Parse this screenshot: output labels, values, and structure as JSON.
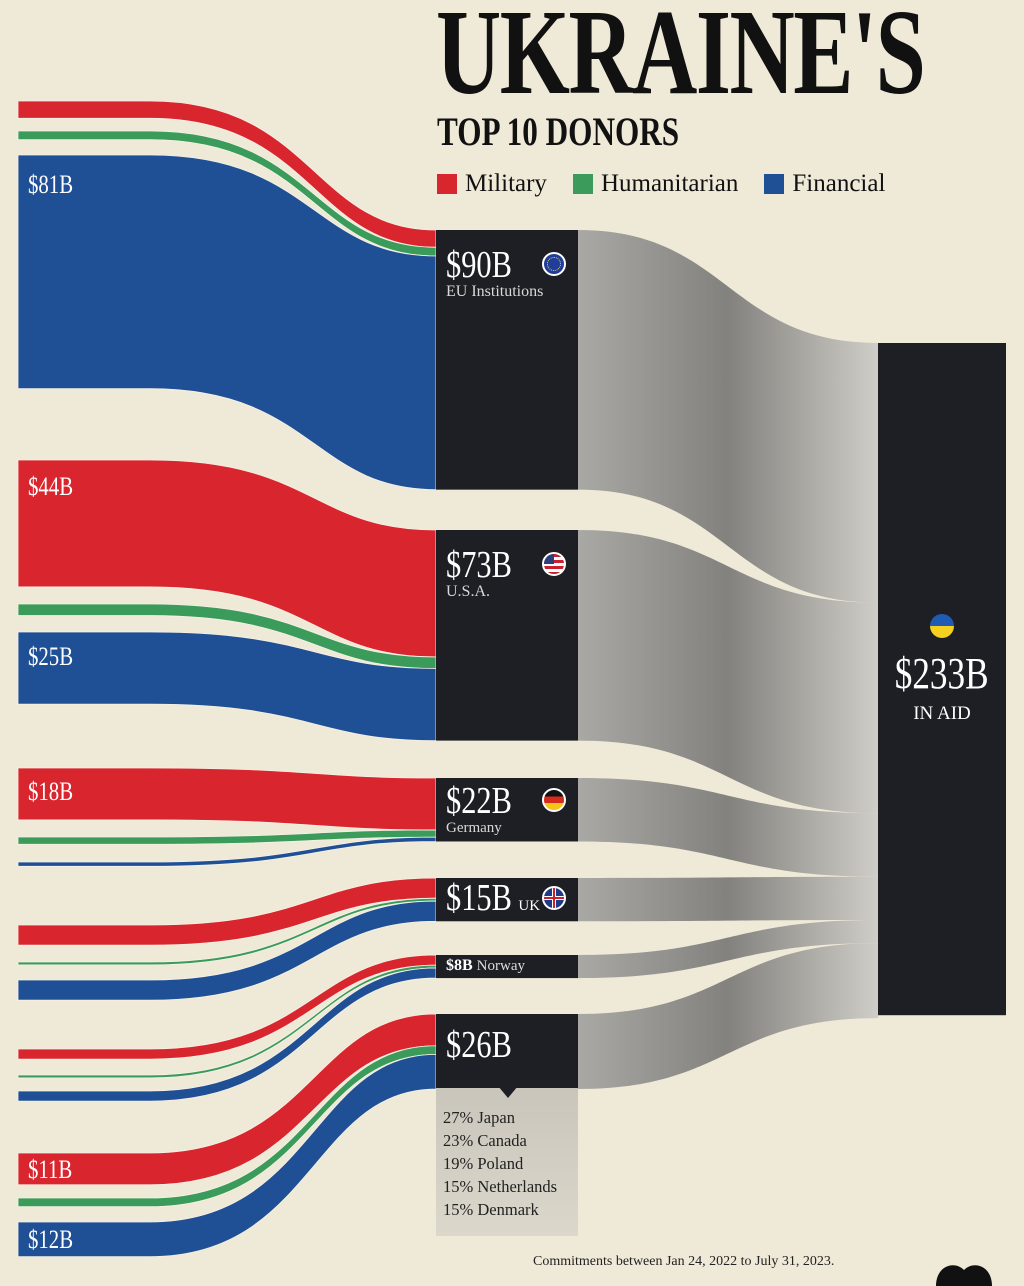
{
  "header": {
    "title": "UKRAINE'S",
    "subtitle": "TOP 10 DONORS"
  },
  "legend": [
    {
      "label": "Military",
      "color": "#d9262e"
    },
    {
      "label": "Humanitarian",
      "color": "#3a9b5a"
    },
    {
      "label": "Financial",
      "color": "#1f4f95"
    }
  ],
  "chart_data": {
    "type": "sankey",
    "title": "UKRAINE'S TOP 10 DONORS",
    "unit": "USD billions",
    "categories": [
      "Military",
      "Humanitarian",
      "Financial"
    ],
    "donors": [
      {
        "id": "eu",
        "value_label": "$90B",
        "name": "EU Institutions",
        "value": 90,
        "flag": "eu-flag-icon",
        "links": {
          "Military": 6,
          "Humanitarian": 3,
          "Financial": 81
        },
        "printed": {
          "Financial": "$81B"
        }
      },
      {
        "id": "usa",
        "value_label": "$73B",
        "name": "U.S.A.",
        "value": 73,
        "flag": "us-flag-icon",
        "links": {
          "Military": 44,
          "Humanitarian": 4,
          "Financial": 25
        },
        "printed": {
          "Military": "$44B",
          "Financial": "$25B"
        }
      },
      {
        "id": "germany",
        "value_label": "$22B",
        "name": "Germany",
        "value": 22,
        "flag": "germany-flag-icon",
        "links": {
          "Military": 18,
          "Humanitarian": 2.5,
          "Financial": 1.5
        },
        "printed": {
          "Military": "$18B"
        }
      },
      {
        "id": "uk",
        "value_label": "$15B",
        "name": "UK",
        "value": 15,
        "flag": "uk-flag-icon",
        "links": {
          "Military": 7,
          "Humanitarian": 1,
          "Financial": 7
        },
        "printed": {}
      },
      {
        "id": "norway",
        "value_label": "$8B",
        "name": "Norway",
        "value": 8,
        "links": {
          "Military": 3.5,
          "Humanitarian": 1,
          "Financial": 3.5
        },
        "printed": {}
      },
      {
        "id": "others",
        "value_label": "$26B",
        "name": "",
        "value": 26,
        "links": {
          "Military": 11,
          "Humanitarian": 3,
          "Financial": 12
        },
        "printed": {
          "Military": "$11B",
          "Financial": "$12B"
        },
        "breakdown": [
          "27% Japan",
          "23% Canada",
          "19% Poland",
          "15% Netherlands",
          "15% Denmark"
        ]
      }
    ],
    "target": {
      "value_label": "$233B",
      "label": "IN AID",
      "value": 233,
      "flag": "ukraine-flag-icon"
    }
  },
  "footnote": "Commitments between Jan 24, 2022 to July 31, 2023."
}
